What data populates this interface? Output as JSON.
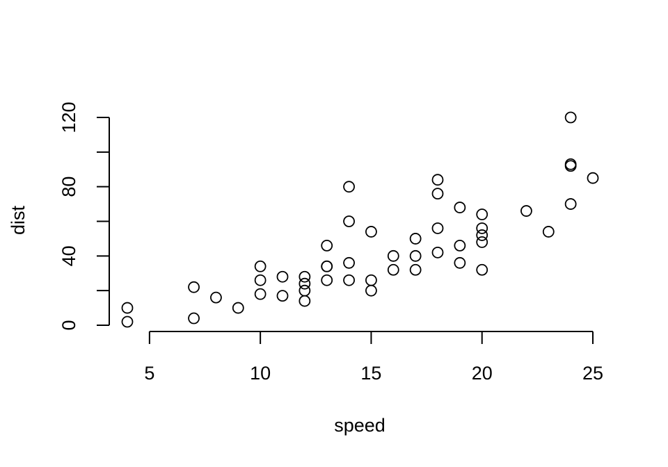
{
  "chart_data": {
    "type": "scatter",
    "title": "",
    "xlabel": "speed",
    "ylabel": "dist",
    "xlim": [
      4,
      25
    ],
    "ylim": [
      0,
      120
    ],
    "x_ticks": [
      5,
      10,
      15,
      20,
      25
    ],
    "x_tick_labels": [
      "5",
      "10",
      "15",
      "20",
      "25"
    ],
    "y_ticks": [
      0,
      20,
      40,
      60,
      80,
      100,
      120
    ],
    "y_tick_labels": [
      "0",
      "",
      "40",
      "",
      "80",
      "",
      "120"
    ],
    "grid": false,
    "marker": "open-circle",
    "series": [
      {
        "x": [
          4,
          4,
          7,
          7,
          8,
          9,
          10,
          10,
          10,
          11,
          11,
          12,
          12,
          12,
          12,
          13,
          13,
          13,
          13,
          14,
          14,
          14,
          14,
          15,
          15,
          15,
          16,
          16,
          17,
          17,
          17,
          18,
          18,
          18,
          18,
          19,
          19,
          19,
          20,
          20,
          20,
          20,
          20,
          22,
          23,
          24,
          24,
          24,
          24,
          25
        ],
        "y": [
          2,
          10,
          4,
          22,
          16,
          10,
          18,
          26,
          34,
          17,
          28,
          14,
          20,
          24,
          28,
          26,
          34,
          34,
          46,
          26,
          36,
          60,
          80,
          20,
          26,
          54,
          32,
          40,
          32,
          40,
          50,
          42,
          56,
          76,
          84,
          36,
          46,
          68,
          32,
          48,
          52,
          56,
          64,
          66,
          54,
          70,
          92,
          93,
          120,
          85
        ]
      }
    ]
  }
}
